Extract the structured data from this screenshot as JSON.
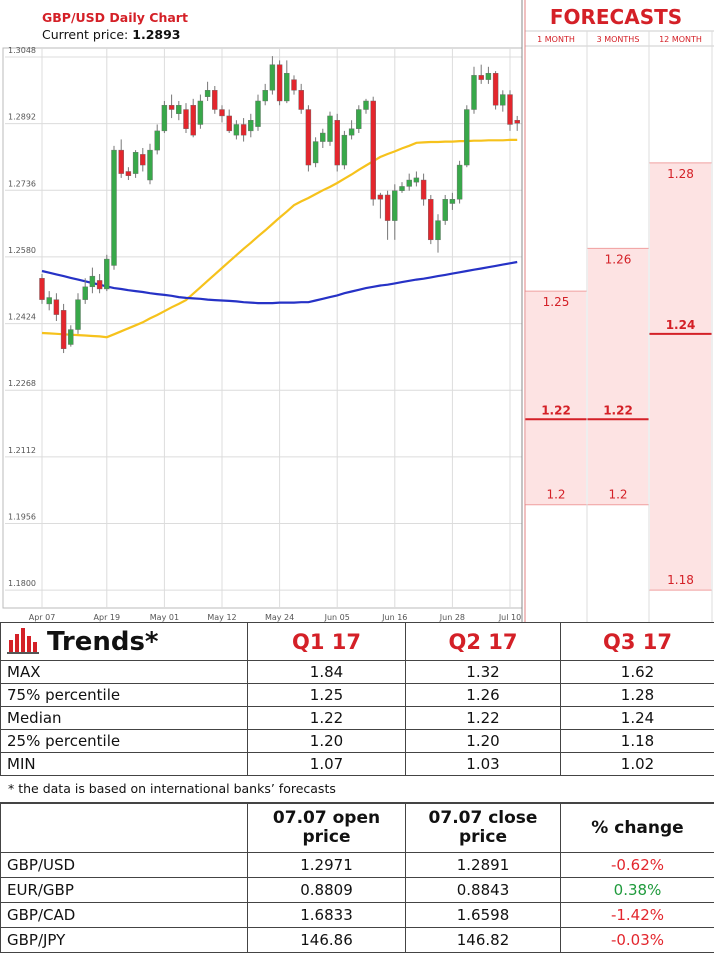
{
  "chart_data": [
    {
      "type": "candlestick",
      "title": "GBP/USD Daily Chart",
      "subtitle": "Current price:",
      "current_price": 1.2893,
      "categories": [
        "Apr 07",
        null,
        null,
        null,
        null,
        null,
        null,
        null,
        null,
        "Apr 19",
        null,
        null,
        null,
        null,
        null,
        null,
        null,
        "May 01",
        null,
        null,
        null,
        null,
        null,
        null,
        null,
        "May 12",
        null,
        null,
        null,
        null,
        null,
        null,
        null,
        "May 24",
        null,
        null,
        null,
        null,
        null,
        null,
        null,
        "Jun 05",
        null,
        null,
        null,
        null,
        null,
        null,
        null,
        "Jun 16",
        null,
        null,
        null,
        null,
        null,
        null,
        null,
        "Jun 28",
        null,
        null,
        null,
        null,
        null,
        null,
        null,
        "Jul 10",
        null
      ],
      "open": [
        1.253,
        1.247,
        1.248,
        1.2455,
        1.2375,
        1.241,
        1.248,
        1.251,
        1.2525,
        1.2505,
        1.256,
        1.283,
        1.278,
        1.2775,
        1.282,
        1.276,
        1.283,
        1.2875,
        1.2935,
        1.2915,
        1.2925,
        1.2935,
        1.289,
        1.2955,
        1.297,
        1.2925,
        1.291,
        1.2865,
        1.289,
        1.2875,
        1.2885,
        1.2945,
        1.297,
        1.303,
        1.2945,
        1.2995,
        1.297,
        1.2925,
        1.28,
        1.285,
        1.285,
        1.29,
        1.2795,
        1.2865,
        1.288,
        1.2925,
        1.2945,
        1.2725,
        1.2725,
        1.2665,
        1.2735,
        1.2745,
        1.2755,
        1.276,
        1.2715,
        1.262,
        1.2665,
        1.2705,
        1.2715,
        1.2795,
        1.2925,
        1.3005,
        1.2995,
        1.301,
        1.2935,
        1.296,
        1.29
      ],
      "high": [
        1.254,
        1.25,
        1.2495,
        1.247,
        1.242,
        1.2495,
        1.253,
        1.2555,
        1.254,
        1.2585,
        1.284,
        1.2855,
        1.279,
        1.283,
        1.2835,
        1.2845,
        1.289,
        1.2945,
        1.296,
        1.2945,
        1.294,
        1.295,
        1.296,
        1.299,
        1.298,
        1.2935,
        1.2925,
        1.29,
        1.2905,
        1.2915,
        1.296,
        1.2985,
        1.305,
        1.304,
        1.304,
        1.3005,
        1.2985,
        1.2935,
        1.286,
        1.288,
        1.292,
        1.2915,
        1.2875,
        1.29,
        1.2935,
        1.295,
        1.2955,
        1.273,
        1.2735,
        1.275,
        1.2755,
        1.2775,
        1.278,
        1.2775,
        1.2725,
        1.268,
        1.2725,
        1.273,
        1.2805,
        1.2935,
        1.3025,
        1.303,
        1.3025,
        1.3015,
        1.297,
        1.297,
        1.291
      ],
      "low": [
        1.247,
        1.2455,
        1.243,
        1.2355,
        1.237,
        1.24,
        1.247,
        1.2495,
        1.2495,
        1.25,
        1.255,
        1.2765,
        1.276,
        1.2765,
        1.278,
        1.275,
        1.282,
        1.287,
        1.2905,
        1.29,
        1.287,
        1.286,
        1.288,
        1.2945,
        1.2915,
        1.2895,
        1.287,
        1.2855,
        1.285,
        1.286,
        1.2875,
        1.2935,
        1.296,
        1.2935,
        1.294,
        1.296,
        1.2915,
        1.278,
        1.279,
        1.2835,
        1.284,
        1.278,
        1.2785,
        1.2855,
        1.287,
        1.2915,
        1.27,
        1.267,
        1.262,
        1.262,
        1.273,
        1.2735,
        1.2745,
        1.27,
        1.261,
        1.259,
        1.2655,
        1.269,
        1.2705,
        1.279,
        1.2915,
        1.2985,
        1.2985,
        1.2925,
        1.292,
        1.2875,
        1.2875
      ],
      "close": [
        1.248,
        1.2485,
        1.2445,
        1.2365,
        1.241,
        1.248,
        1.251,
        1.2535,
        1.2505,
        1.2575,
        1.283,
        1.2775,
        1.277,
        1.2825,
        1.2795,
        1.283,
        1.2875,
        1.2935,
        1.2925,
        1.2935,
        1.288,
        1.2865,
        1.2945,
        1.297,
        1.2925,
        1.291,
        1.2875,
        1.289,
        1.2865,
        1.29,
        1.2945,
        1.297,
        1.303,
        1.2945,
        1.301,
        1.297,
        1.2925,
        1.2795,
        1.285,
        1.287,
        1.291,
        1.2795,
        1.2865,
        1.288,
        1.2925,
        1.2945,
        1.2715,
        1.2715,
        1.2665,
        1.2735,
        1.2745,
        1.276,
        1.2765,
        1.2715,
        1.262,
        1.2665,
        1.2715,
        1.2715,
        1.2795,
        1.2925,
        1.3005,
        1.2995,
        1.301,
        1.2935,
        1.296,
        1.289,
        1.2893
      ],
      "up_color": "#38a84a",
      "down_color": "#e3262d",
      "series": [
        {
          "color": "#f6c21c",
          "values": [
            1.2402,
            1.2401,
            1.24,
            1.2399,
            1.2398,
            1.2397,
            1.2396,
            1.2395,
            1.2394,
            1.2392,
            1.2399,
            1.2406,
            1.2413,
            1.242,
            1.2427,
            1.2436,
            1.2444,
            1.2453,
            1.2462,
            1.247,
            1.2479,
            1.2494,
            1.2509,
            1.2524,
            1.2539,
            1.2554,
            1.2569,
            1.2584,
            1.2599,
            1.2613,
            1.2628,
            1.2642,
            1.2657,
            1.2672,
            1.2686,
            1.2701,
            1.271,
            1.2718,
            1.2727,
            1.2736,
            1.2744,
            1.2753,
            1.2763,
            1.2773,
            1.2784,
            1.2794,
            1.2804,
            1.2814,
            1.2821,
            1.2827,
            1.2834,
            1.284,
            1.2847,
            1.2848,
            1.2849,
            1.2849,
            1.285,
            1.285,
            1.2851,
            1.2851,
            1.2852,
            1.2852,
            1.2853,
            1.2853,
            1.2853,
            1.2854,
            1.2854
          ]
        },
        {
          "color": "#2632c6",
          "values": [
            1.2547,
            1.2543,
            1.2539,
            1.2535,
            1.2531,
            1.2527,
            1.2523,
            1.2519,
            1.2515,
            1.2511,
            1.2507,
            1.2505,
            1.2502,
            1.25,
            1.2498,
            1.2495,
            1.2493,
            1.2491,
            1.2489,
            1.2486,
            1.2484,
            1.2483,
            1.2482,
            1.248,
            1.2479,
            1.2478,
            1.2477,
            1.2476,
            1.2474,
            1.2473,
            1.2472,
            1.2472,
            1.2472,
            1.2473,
            1.2473,
            1.2473,
            1.2474,
            1.2474,
            1.2478,
            1.2482,
            1.2486,
            1.249,
            1.2495,
            1.2499,
            1.2503,
            1.2507,
            1.251,
            1.2513,
            1.2515,
            1.2518,
            1.2521,
            1.2524,
            1.2527,
            1.2529,
            1.2532,
            1.2535,
            1.2538,
            1.2541,
            1.2544,
            1.2547,
            1.255,
            1.2553,
            1.2556,
            1.2559,
            1.2562,
            1.2565,
            1.2568
          ]
        }
      ],
      "ylim": [
        1.1777,
        1.3069
      ],
      "yticks": [
        1.3048,
        1.2892,
        1.2736,
        {
          "value": 1.258,
          "label": "1.2580"
        },
        1.2424,
        1.2268,
        1.2112,
        1.1956,
        {
          "value": 1.18,
          "label": "1.1800"
        }
      ],
      "grid": true
    },
    {
      "type": "forecast",
      "title": "FORECASTS",
      "categories": [
        "1 MONTH",
        "3 MONTHS",
        "12 MONTH"
      ],
      "high": [
        1.25,
        1.26,
        1.28
      ],
      "median": [
        1.22,
        1.22,
        1.24
      ],
      "low": [
        1.2,
        1.2,
        1.18
      ],
      "ylim": [
        1.1777,
        1.3069
      ],
      "band_color": "#fde3e3",
      "line_color": "#d42027"
    }
  ],
  "trends": {
    "title": "Trends*",
    "columns": [
      "Q1 17",
      "Q2 17",
      "Q3 17"
    ],
    "rows": [
      [
        "MAX",
        "1.84",
        "1.32",
        "1.62"
      ],
      [
        "75% percentile",
        "1.25",
        "1.26",
        "1.28"
      ],
      [
        "Median",
        "1.22",
        "1.22",
        "1.24"
      ],
      [
        "25% percentile",
        "1.20",
        "1.20",
        "1.18"
      ],
      [
        "MIN",
        "1.07",
        "1.03",
        "1.02"
      ]
    ]
  },
  "footnote": "* the data is based on international banks’ forecasts",
  "prices": {
    "columns": [
      "07.07 open price",
      "07.07 close price",
      "% change"
    ],
    "rows": [
      [
        "GBP/USD",
        "1.2971",
        "1.2891",
        "-0.62%"
      ],
      [
        "EUR/GBP",
        "0.8809",
        "0.8843",
        "0.38%"
      ],
      [
        "GBP/CAD",
        "1.6833",
        "1.6598",
        "-1.42%"
      ],
      [
        "GBP/JPY",
        "146.86",
        "146.82",
        "-0.03%"
      ]
    ],
    "change_colors": [
      "#e3262d",
      "#1f9a3c",
      "#e3262d",
      "#e3262d"
    ]
  }
}
